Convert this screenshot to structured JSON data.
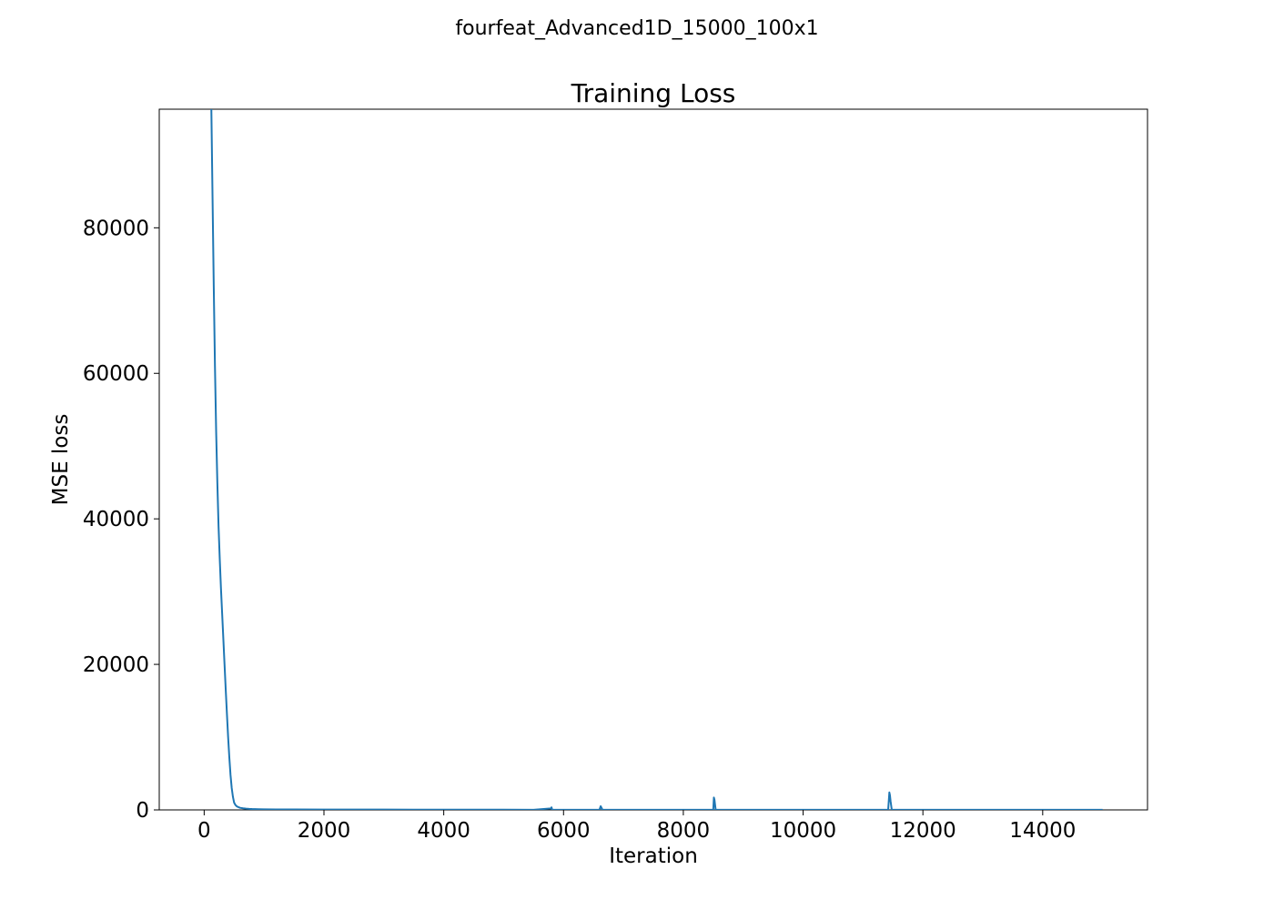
{
  "figure": {
    "suptitle": "fourfeat_Advanced1D_15000_100x1"
  },
  "chart_data": {
    "type": "line",
    "title": "Training Loss",
    "xlabel": "Iteration",
    "ylabel": "MSE loss",
    "xlim": [
      -750,
      15750
    ],
    "ylim": [
      0,
      96300
    ],
    "grid": false,
    "line_color": "#1f77b4",
    "x_ticks": [
      0,
      2000,
      4000,
      6000,
      8000,
      10000,
      12000,
      14000
    ],
    "x_tick_labels": [
      "0",
      "2000",
      "4000",
      "6000",
      "8000",
      "10000",
      "12000",
      "14000"
    ],
    "y_ticks": [
      0,
      20000,
      40000,
      60000,
      80000
    ],
    "y_tick_labels": [
      "0",
      "20000",
      "40000",
      "60000",
      "80000"
    ],
    "series": [
      {
        "x": [
          120,
          140,
          160,
          180,
          200,
          220,
          240,
          260,
          280,
          300,
          320,
          340,
          360,
          380,
          400,
          420,
          440,
          460,
          480,
          500,
          520,
          540,
          560,
          580,
          600,
          650,
          700,
          750,
          800,
          900,
          1000,
          1200,
          1500,
          2000,
          2500,
          3000,
          3500,
          4000,
          4500,
          5000,
          5500,
          5790,
          5800,
          5810,
          6000,
          6600,
          6620,
          6630,
          6650,
          6700,
          7000,
          7500,
          8000,
          8400,
          8500,
          8510,
          8520,
          8540,
          8560,
          8600,
          9000,
          9500,
          10000,
          10500,
          11000,
          11300,
          11420,
          11440,
          11450,
          11460,
          11480,
          11520,
          11600,
          12000,
          12500,
          13000,
          13500,
          14000,
          14500,
          15000
        ],
        "y": [
          96300,
          84000,
          72000,
          61000,
          52000,
          45000,
          39000,
          34500,
          30500,
          27000,
          23500,
          20000,
          16500,
          13200,
          10000,
          7200,
          4800,
          3000,
          1800,
          1000,
          700,
          520,
          420,
          350,
          290,
          220,
          170,
          140,
          120,
          100,
          85,
          70,
          60,
          50,
          45,
          40,
          35,
          30,
          28,
          25,
          22,
          200,
          350,
          20,
          20,
          20,
          500,
          350,
          20,
          20,
          18,
          16,
          15,
          15,
          15,
          1700,
          1400,
          20,
          15,
          15,
          15,
          14,
          14,
          14,
          14,
          14,
          14,
          2400,
          2000,
          1200,
          20,
          14,
          14,
          14,
          14,
          13,
          13,
          13,
          13,
          13
        ]
      }
    ]
  }
}
